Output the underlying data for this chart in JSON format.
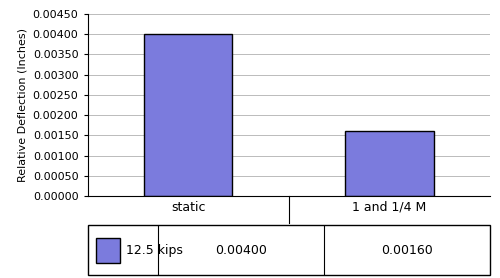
{
  "categories": [
    "static",
    "1 and 1/4 M"
  ],
  "values": [
    0.004,
    0.0016
  ],
  "bar_color": "#7b7bdd",
  "bar_edge_color": "#000000",
  "ylabel": "Relative Deflection (Inches)",
  "ylim": [
    0,
    0.0045
  ],
  "ytick_interval": 0.0005,
  "legend_label": "12.5 kips",
  "legend_values": [
    "0.00400",
    "0.00160"
  ],
  "background_color": "#ffffff",
  "grid_color": "#bbbbbb",
  "ylabel_fontsize": 8,
  "tick_fontsize": 8,
  "cat_fontsize": 9,
  "table_fontsize": 9
}
